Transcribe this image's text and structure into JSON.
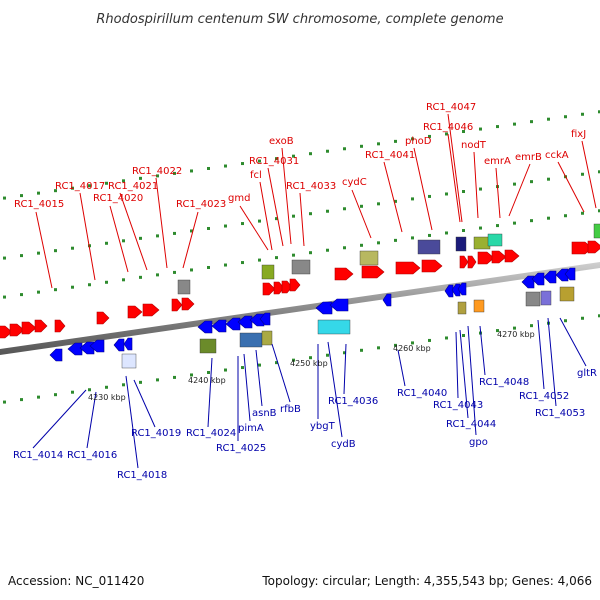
{
  "title": "Rhodospirillum centenum SW chromosome, complete genome",
  "footer": {
    "accession": "Accession: NC_011420",
    "topology": "Topology: circular; Length: 4,355,543 bp; Genes: 4,066"
  },
  "colors": {
    "forward_gene": "#ff0000",
    "reverse_gene": "#0000ff",
    "backbone": "#888888",
    "dot": "#2e8b2e",
    "forward_label": "#dd0000",
    "reverse_label": "#0000aa"
  },
  "ticks": [
    "4230 kbp",
    "4240 kbp",
    "4250 kbp",
    "4260 kbp",
    "4270 kbp"
  ],
  "labels_forward": [
    "RC1_4015",
    "RC1_4017",
    "RC1_4021",
    "RC1_4020",
    "RC1_4022",
    "RC1_4023",
    "gmd",
    "fcl",
    "RC1_4031",
    "exoB",
    "RC1_4033",
    "cydC",
    "RC1_4041",
    "phoD",
    "RC1_4046",
    "RC1_4047",
    "nodT",
    "emrA",
    "emrB",
    "cckA",
    "fixJ"
  ],
  "labels_reverse": [
    "RC1_4014",
    "RC1_4016",
    "RC1_4018",
    "RC1_4019",
    "RC1_4024",
    "RC1_4025",
    "pimA",
    "asnB",
    "rfbB",
    "ybgT",
    "cydB",
    "RC1_4036",
    "RC1_4040",
    "RC1_4043",
    "RC1_4044",
    "gpo",
    "RC1_4048",
    "RC1_4052",
    "RC1_4053",
    "gltR"
  ]
}
